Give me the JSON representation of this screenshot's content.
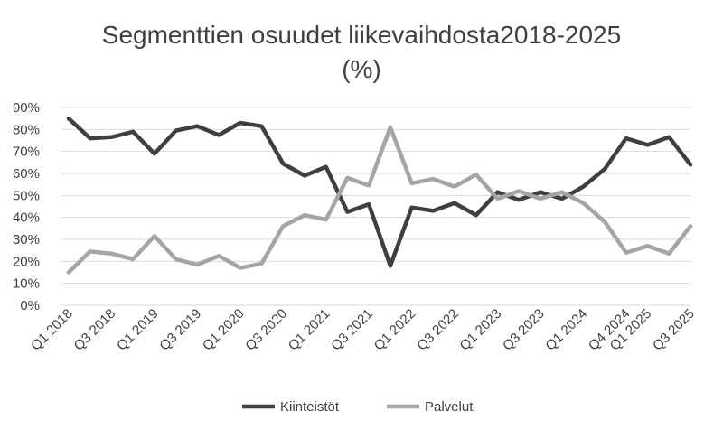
{
  "chart_data": {
    "type": "line",
    "title_line1": "Segmenttien osuudet liikevaihdosta2018-2025",
    "title_line2": "(%)",
    "xlabel": "",
    "ylabel": "",
    "ylim": [
      0,
      90
    ],
    "yticks": [
      "0%",
      "10%",
      "20%",
      "30%",
      "40%",
      "50%",
      "60%",
      "70%",
      "80%",
      "90%"
    ],
    "grid": true,
    "legend_position": "bottom",
    "x_tick_labels": [
      "Q1 2018",
      "Q3 2018",
      "Q1 2019",
      "Q3 2019",
      "Q1 2020",
      "Q3 2020",
      "Q1 2021",
      "Q3 2021",
      "Q1 2022",
      "Q3 2022",
      "Q1 2023",
      "Q3 2023",
      "Q1 2024",
      "Q4 2024",
      "Q1 2025",
      "Q3 2025"
    ],
    "x_tick_indices": [
      0,
      2,
      4,
      6,
      8,
      10,
      12,
      14,
      16,
      18,
      20,
      22,
      24,
      26,
      27,
      29
    ],
    "point_count": 30,
    "series": [
      {
        "name": "Kiinteistöt",
        "color": "#3f3f3f",
        "values": [
          85,
          76,
          76.5,
          79,
          69,
          79.5,
          81.5,
          77.5,
          83,
          81.5,
          64.5,
          59,
          63,
          42.5,
          46,
          18,
          44.5,
          43,
          46.5,
          41,
          51.5,
          48,
          51.5,
          48.5,
          54,
          62,
          76,
          73,
          76.5,
          64
        ]
      },
      {
        "name": "Palvelut",
        "color": "#a5a5a5",
        "values": [
          15,
          24.5,
          23.5,
          21,
          31.5,
          21,
          18.5,
          22.5,
          17,
          19,
          36,
          41,
          39,
          58,
          54.5,
          81,
          55.5,
          57.5,
          54,
          59.5,
          48.5,
          52,
          48.5,
          51.5,
          46.5,
          38,
          24,
          27,
          23.5,
          36
        ]
      }
    ]
  }
}
